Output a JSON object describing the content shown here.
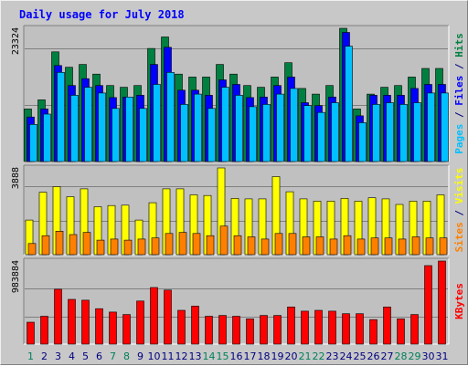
{
  "chart_data": {
    "type": "bar",
    "title": "Daily usage for July 2018",
    "categories": [
      "1",
      "2",
      "3",
      "4",
      "5",
      "6",
      "7",
      "8",
      "9",
      "10",
      "11",
      "12",
      "13",
      "14",
      "15",
      "16",
      "17",
      "18",
      "19",
      "20",
      "21",
      "22",
      "23",
      "24",
      "25",
      "26",
      "27",
      "28",
      "29",
      "30",
      "31"
    ],
    "weekend_days": [
      "1",
      "7",
      "8",
      "14",
      "15",
      "21",
      "22",
      "28",
      "29"
    ],
    "panels": [
      {
        "id": "hits",
        "max_label": "23324",
        "ylim": [
          0,
          23324
        ],
        "series": [
          {
            "name": "Hits",
            "color": "#008040",
            "values": [
              9200,
              10800,
              19200,
              16500,
              17000,
              15300,
              13300,
              13000,
              13300,
              19800,
              21800,
              15300,
              14800,
              14800,
              17000,
              15300,
              13300,
              13000,
              14800,
              17300,
              12800,
              11800,
              13300,
              23324,
              9200,
              11800,
              13000,
              13300,
              14800,
              16300,
              16300
            ]
          },
          {
            "name": "Files",
            "color": "#0000ff",
            "values": [
              7800,
              9200,
              16800,
              13300,
              14500,
              13300,
              11200,
              11300,
              11600,
              17000,
              20000,
              12500,
              12500,
              11600,
              14300,
              13500,
              11200,
              11300,
              13300,
              14800,
              10300,
              9800,
              11300,
              22600,
              8000,
              11600,
              11600,
              11600,
              12800,
              13500,
              13500
            ]
          },
          {
            "name": "Pages",
            "color": "#00c0ff",
            "values": [
              6500,
              8300,
              15600,
              11600,
              13000,
              12000,
              9300,
              11300,
              9300,
              13500,
              15600,
              10000,
              11800,
              9300,
              13000,
              11600,
              9600,
              10000,
              11800,
              12800,
              9800,
              8600,
              10300,
              20200,
              6800,
              10000,
              10300,
              10000,
              10300,
              12000,
              12000
            ]
          }
        ]
      },
      {
        "id": "visits",
        "max_label": "3888",
        "ylim": [
          0,
          3888
        ],
        "series": [
          {
            "name": "Visits",
            "color": "#ffff00",
            "values": [
              1550,
              2800,
              3050,
              2600,
              2950,
              2150,
              2200,
              2220,
              1550,
              2330,
              2950,
              2950,
              2680,
              2650,
              3888,
              2520,
              2500,
              2500,
              3500,
              2820,
              2500,
              2400,
              2400,
              2520,
              2400,
              2550,
              2500,
              2250,
              2400,
              2400,
              2680
            ]
          },
          {
            "name": "Sites",
            "color": "#ff8000",
            "values": [
              500,
              850,
              1050,
              900,
              1000,
              650,
              700,
              650,
              700,
              750,
              950,
              1000,
              950,
              850,
              1280,
              850,
              800,
              700,
              950,
              950,
              800,
              800,
              700,
              850,
              700,
              750,
              750,
              700,
              800,
              750,
              750
            ]
          }
        ]
      },
      {
        "id": "kbytes",
        "max_label": "983884",
        "ylim": [
          0,
          983884
        ],
        "series": [
          {
            "name": "KBytes",
            "color": "#ff0000",
            "values": [
              260000,
              330000,
              650000,
              530000,
              520000,
              420000,
              380000,
              350000,
              510000,
              670000,
              640000,
              400000,
              450000,
              330000,
              340000,
              330000,
              300000,
              340000,
              340000,
              440000,
              390000,
              400000,
              390000,
              360000,
              360000,
              290000,
              440000,
              300000,
              350000,
              930000,
              983884
            ]
          }
        ]
      }
    ],
    "right_labels": {
      "hits_panel": [
        {
          "text": "Pages",
          "color": "#00c0ff"
        },
        {
          "text": " / ",
          "color": "#000080"
        },
        {
          "text": "Files",
          "color": "#0000ff"
        },
        {
          "text": " / ",
          "color": "#000080"
        },
        {
          "text": "Hits",
          "color": "#008040"
        }
      ],
      "visits_panel": [
        {
          "text": "Sites",
          "color": "#ff8000"
        },
        {
          "text": " / ",
          "color": "#000080"
        },
        {
          "text": "Visits",
          "color": "#ffff00"
        }
      ],
      "kbytes_panel": [
        {
          "text": "KBytes",
          "color": "#ff0000"
        }
      ]
    },
    "colors": {
      "title": "#0000ff",
      "weekday_label": "#000080",
      "weekend_label": "#00805a",
      "plot_bg": "#c0c0c0",
      "frame_bg": "#c8c8c8"
    },
    "grid": true,
    "xlabel": "",
    "ylabel": ""
  }
}
